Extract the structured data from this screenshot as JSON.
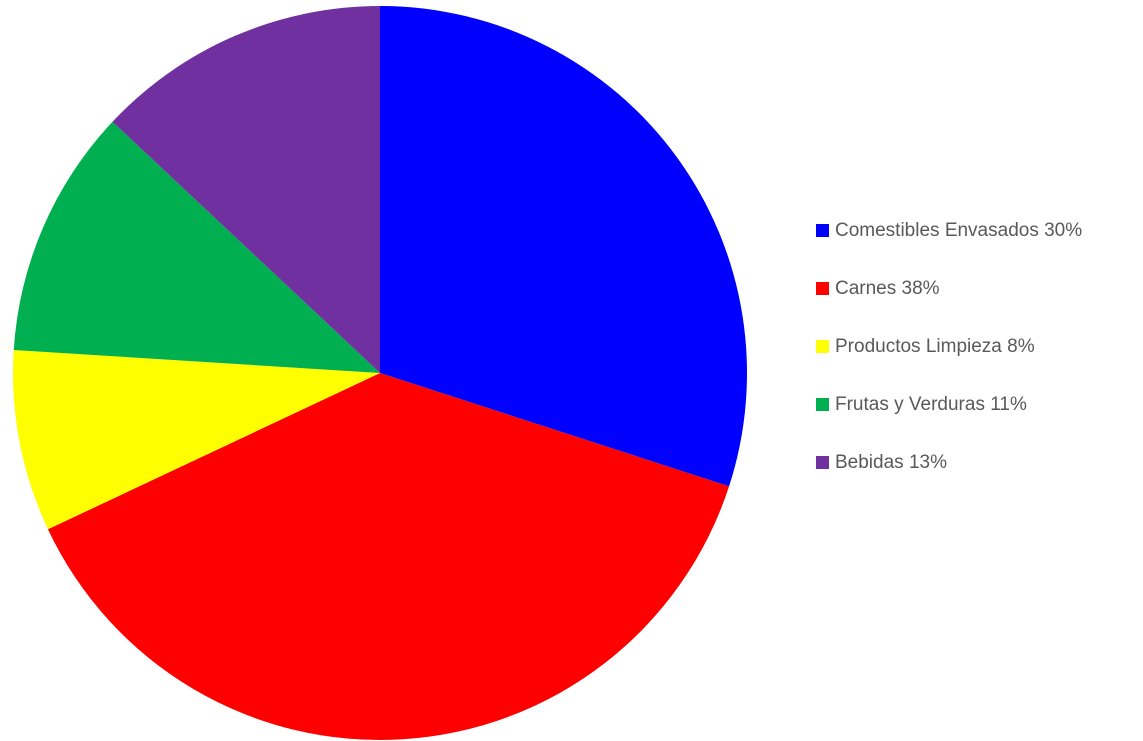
{
  "chart_data": {
    "type": "pie",
    "title": "",
    "start_angle_deg": 0,
    "direction": "clockwise",
    "legend_position": "right",
    "slices": [
      {
        "label": "Comestibles Envasados 30%",
        "value": 30,
        "color": "#0000FF"
      },
      {
        "label": "Carnes 38%",
        "value": 38,
        "color": "#FF0000"
      },
      {
        "label": "Productos Limpieza 8%",
        "value": 8,
        "color": "#FFFF00"
      },
      {
        "label": "Frutas y Verduras 11%",
        "value": 11,
        "color": "#00B050"
      },
      {
        "label": "Bebidas 13%",
        "value": 13,
        "color": "#7030A0"
      }
    ]
  }
}
